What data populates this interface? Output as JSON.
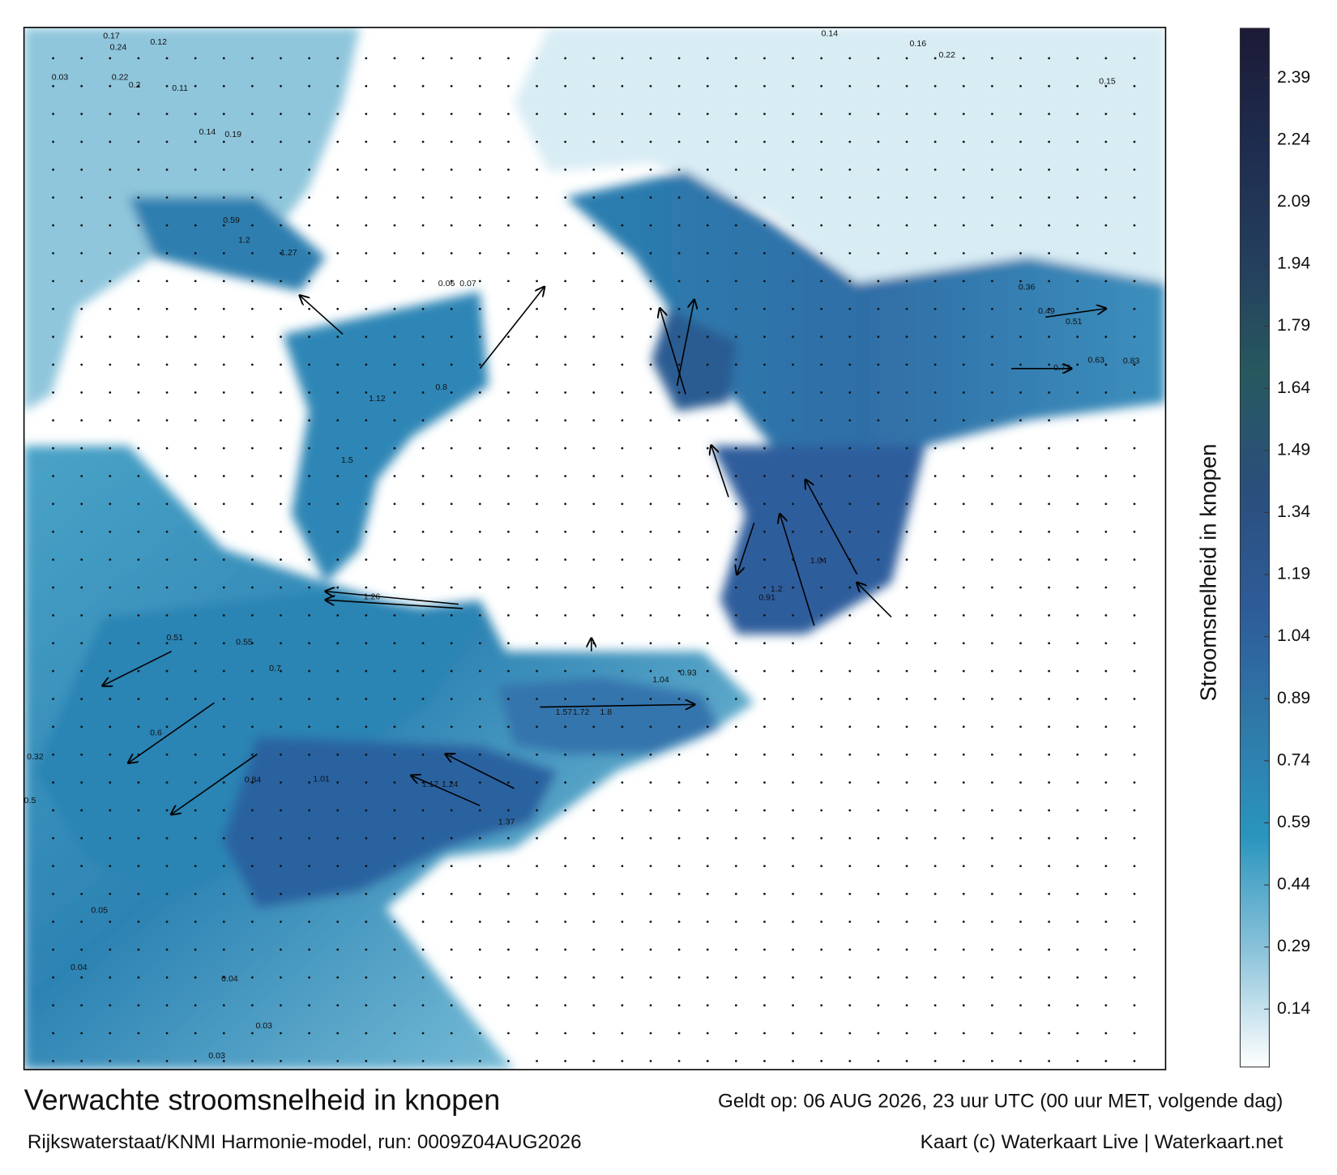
{
  "title": "Verwachte stroomsnelheid in knopen",
  "valid_time": "Geldt op: 06 AUG 2026, 23 uur UTC (00 uur MET, volgende dag)",
  "model": "Rijkswaterstaat/KNMI Harmonie-model, run: 0009Z04AUG2026",
  "credit": "Kaart (c) Waterkaart Live | Waterkaart.net",
  "colorbar": {
    "label": "Stroomsnelheid in knopen",
    "range": [
      0,
      2.51
    ],
    "ticks": [
      0.14,
      0.29,
      0.44,
      0.59,
      0.74,
      0.89,
      1.04,
      1.19,
      1.34,
      1.49,
      1.64,
      1.79,
      1.94,
      2.09,
      2.24,
      2.39
    ],
    "colors": [
      "#ffffff",
      "#8cc3da",
      "#2a95bd",
      "#2f78a8",
      "#2e5b98",
      "#2a4f7c",
      "#27595f",
      "#243e5e",
      "#1e2c4e",
      "#1c1a36"
    ]
  },
  "speed_labels": [
    "0.17",
    "0.12",
    "0.24",
    "0.03",
    "0.22",
    "0.2",
    "0.11",
    "0.14",
    "0.19",
    "0.59",
    "1.2",
    "1.27",
    "0.06",
    "0.07",
    "1.12",
    "0.8",
    "1.5",
    "1.26",
    "0.51",
    "0.55",
    "0.7",
    "0.6",
    "0.84",
    "1.01",
    "1.17",
    "1.24",
    "1.37",
    "1.57",
    "1.72",
    "1.8",
    "1.04",
    "0.93",
    "1.2",
    "1.04",
    "0.91",
    "0.49",
    "0.51",
    "0.77",
    "0.63",
    "0.83",
    "0.36",
    "0.14",
    "0.16",
    "0.22",
    "0.15",
    "0.05",
    "0.04",
    "0.04",
    "0.03",
    "0.03",
    "0.32",
    "0.5"
  ]
}
